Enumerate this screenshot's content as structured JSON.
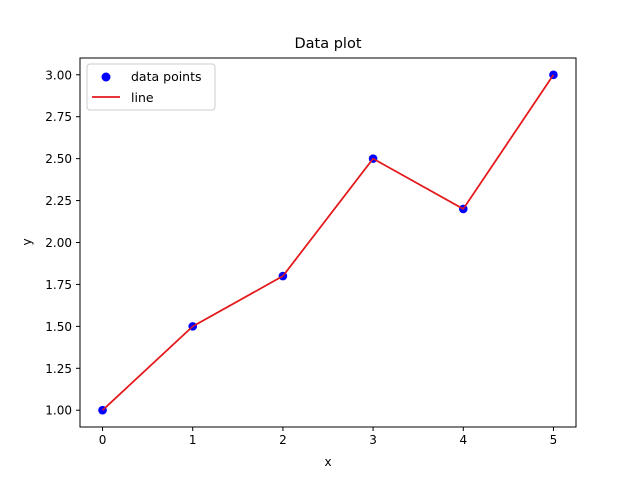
{
  "chart_data": {
    "type": "line",
    "title": "Data plot",
    "xlabel": "x",
    "ylabel": "y",
    "xlim": [
      -0.25,
      5.25
    ],
    "ylim": [
      0.9,
      3.1
    ],
    "xticks": [
      "0",
      "1",
      "2",
      "3",
      "4",
      "5"
    ],
    "yticks": [
      "1.00",
      "1.25",
      "1.50",
      "1.75",
      "2.00",
      "2.25",
      "2.50",
      "2.75",
      "3.00"
    ],
    "grid": false,
    "legend_position": "top-left",
    "series": [
      {
        "name": "data points",
        "kind": "scatter",
        "color": "#0000ff",
        "x": [
          0,
          1,
          2,
          3,
          4,
          5
        ],
        "y": [
          1.0,
          1.5,
          1.8,
          2.5,
          2.2,
          3.0
        ]
      },
      {
        "name": "line",
        "kind": "line",
        "color": "#e41a1c",
        "x": [
          0,
          1,
          2,
          3,
          4,
          5
        ],
        "y": [
          1.0,
          1.5,
          1.8,
          2.5,
          2.2,
          3.0
        ]
      }
    ]
  }
}
